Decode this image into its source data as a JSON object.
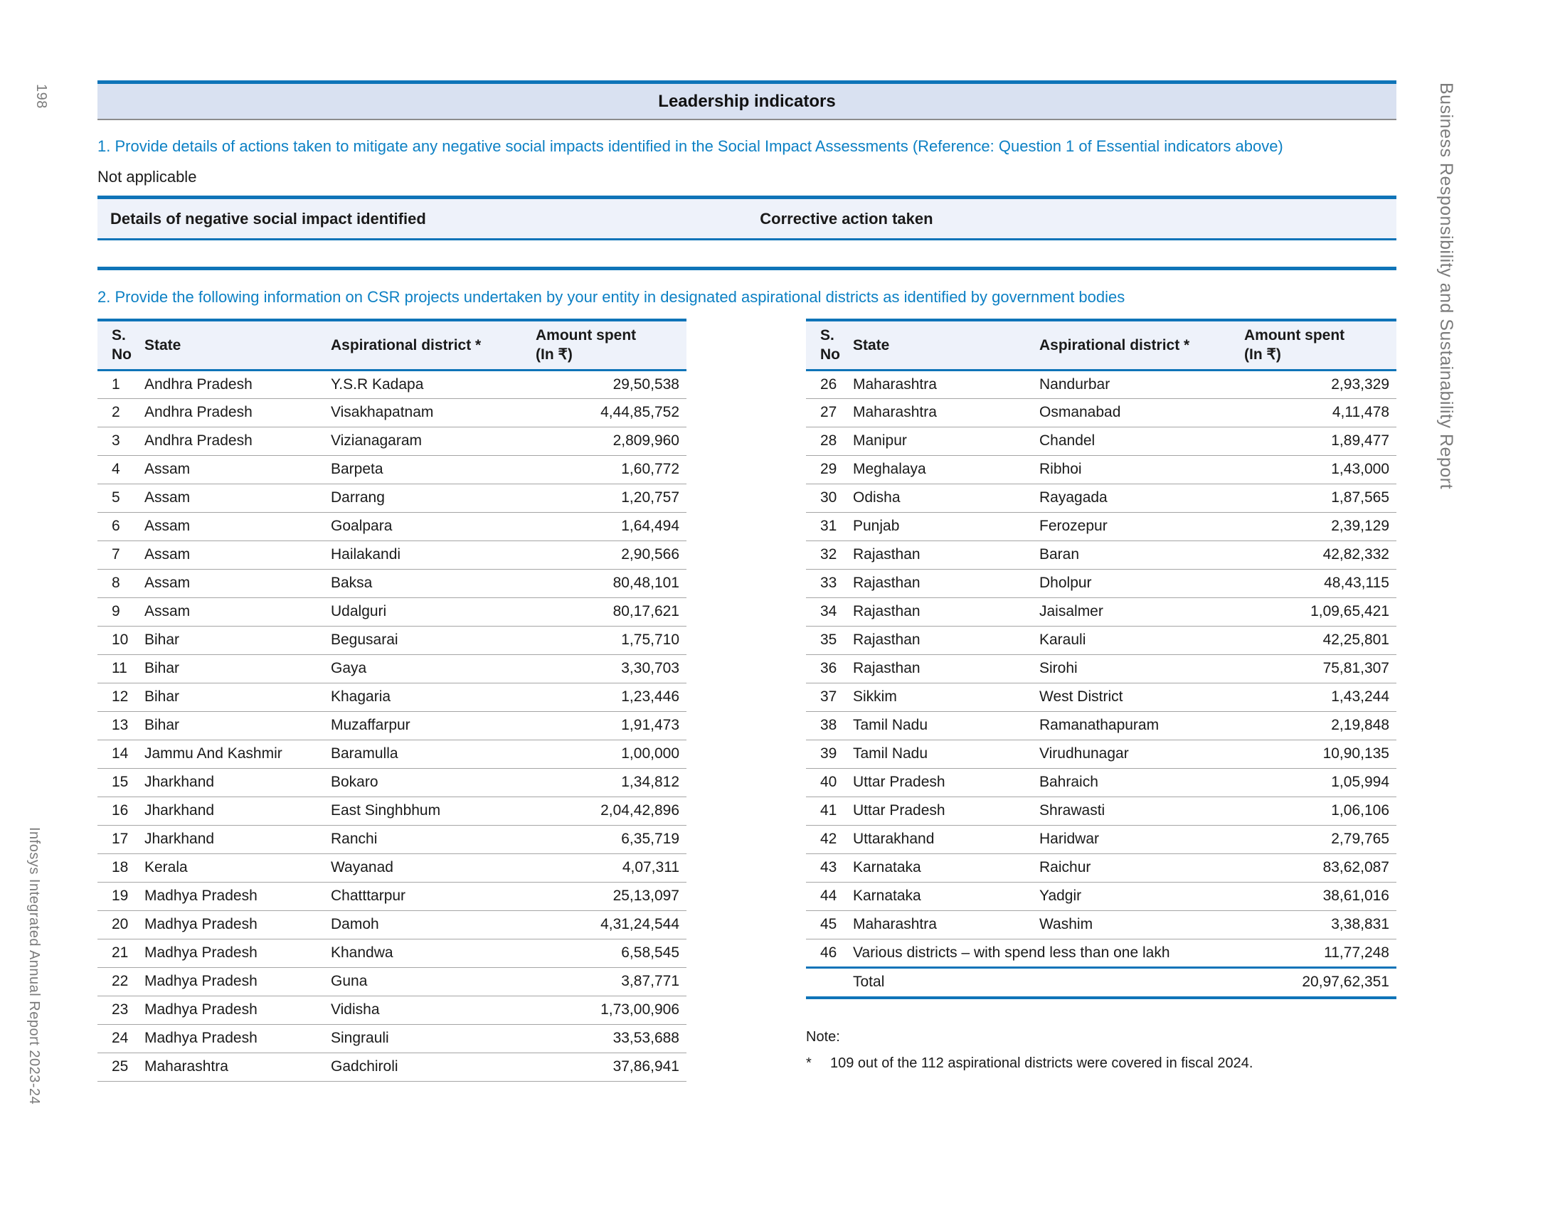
{
  "page": {
    "number": "198",
    "left_footer": "Infosys Integrated Annual Report 2023-24",
    "right_sidebar": "Business Responsibility and Sustainability Report"
  },
  "header": {
    "title": "Leadership indicators"
  },
  "q1": {
    "text": "1. Provide details of actions taken to mitigate any negative social impacts identified in the Social Impact Assessments (Reference: Question 1 of Essential indicators above)",
    "answer": "Not applicable"
  },
  "impact_table": {
    "col1": "Details of negative social impact identified",
    "col2": "Corrective action taken"
  },
  "q2": {
    "text": "2. Provide the following information on CSR projects undertaken by your entity in designated aspirational districts as identified by government bodies"
  },
  "csr_table": {
    "headers": {
      "sno": "S.\nNo",
      "state": "State",
      "district": "Aspirational district *",
      "amount_line1": "Amount spent",
      "amount_line2": "(In ₹)"
    },
    "left_rows": [
      {
        "sno": "1",
        "state": "Andhra Pradesh",
        "district": "Y.S.R Kadapa",
        "amount": "29,50,538"
      },
      {
        "sno": "2",
        "state": "Andhra Pradesh",
        "district": "Visakhapatnam",
        "amount": "4,44,85,752"
      },
      {
        "sno": "3",
        "state": "Andhra Pradesh",
        "district": "Vizianagaram",
        "amount": "2,809,960"
      },
      {
        "sno": "4",
        "state": "Assam",
        "district": "Barpeta",
        "amount": "1,60,772"
      },
      {
        "sno": "5",
        "state": "Assam",
        "district": "Darrang",
        "amount": "1,20,757"
      },
      {
        "sno": "6",
        "state": "Assam",
        "district": "Goalpara",
        "amount": "1,64,494"
      },
      {
        "sno": "7",
        "state": "Assam",
        "district": "Hailakandi",
        "amount": "2,90,566"
      },
      {
        "sno": "8",
        "state": "Assam",
        "district": "Baksa",
        "amount": "80,48,101"
      },
      {
        "sno": "9",
        "state": "Assam",
        "district": "Udalguri",
        "amount": "80,17,621"
      },
      {
        "sno": "10",
        "state": "Bihar",
        "district": "Begusarai",
        "amount": "1,75,710"
      },
      {
        "sno": "11",
        "state": "Bihar",
        "district": "Gaya",
        "amount": "3,30,703"
      },
      {
        "sno": "12",
        "state": "Bihar",
        "district": "Khagaria",
        "amount": "1,23,446"
      },
      {
        "sno": "13",
        "state": "Bihar",
        "district": "Muzaffarpur",
        "amount": "1,91,473"
      },
      {
        "sno": "14",
        "state": "Jammu And Kashmir",
        "district": "Baramulla",
        "amount": "1,00,000"
      },
      {
        "sno": "15",
        "state": "Jharkhand",
        "district": "Bokaro",
        "amount": "1,34,812"
      },
      {
        "sno": "16",
        "state": "Jharkhand",
        "district": "East Singhbhum",
        "amount": "2,04,42,896"
      },
      {
        "sno": "17",
        "state": "Jharkhand",
        "district": "Ranchi",
        "amount": "6,35,719"
      },
      {
        "sno": "18",
        "state": "Kerala",
        "district": "Wayanad",
        "amount": "4,07,311"
      },
      {
        "sno": "19",
        "state": "Madhya Pradesh",
        "district": "Chatttarpur",
        "amount": "25,13,097"
      },
      {
        "sno": "20",
        "state": "Madhya Pradesh",
        "district": "Damoh",
        "amount": "4,31,24,544"
      },
      {
        "sno": "21",
        "state": "Madhya Pradesh",
        "district": "Khandwa",
        "amount": "6,58,545"
      },
      {
        "sno": "22",
        "state": "Madhya Pradesh",
        "district": "Guna",
        "amount": "3,87,771"
      },
      {
        "sno": "23",
        "state": "Madhya Pradesh",
        "district": "Vidisha",
        "amount": "1,73,00,906"
      },
      {
        "sno": "24",
        "state": "Madhya Pradesh",
        "district": "Singrauli",
        "amount": "33,53,688"
      },
      {
        "sno": "25",
        "state": "Maharashtra",
        "district": "Gadchiroli",
        "amount": "37,86,941"
      }
    ],
    "right_rows": [
      {
        "sno": "26",
        "state": "Maharashtra",
        "district": "Nandurbar",
        "amount": "2,93,329"
      },
      {
        "sno": "27",
        "state": "Maharashtra",
        "district": "Osmanabad",
        "amount": "4,11,478"
      },
      {
        "sno": "28",
        "state": "Manipur",
        "district": "Chandel",
        "amount": "1,89,477"
      },
      {
        "sno": "29",
        "state": "Meghalaya",
        "district": "Ribhoi",
        "amount": "1,43,000"
      },
      {
        "sno": "30",
        "state": "Odisha",
        "district": "Rayagada",
        "amount": "1,87,565"
      },
      {
        "sno": "31",
        "state": "Punjab",
        "district": "Ferozepur",
        "amount": "2,39,129"
      },
      {
        "sno": "32",
        "state": "Rajasthan",
        "district": "Baran",
        "amount": "42,82,332"
      },
      {
        "sno": "33",
        "state": "Rajasthan",
        "district": "Dholpur",
        "amount": "48,43,115"
      },
      {
        "sno": "34",
        "state": "Rajasthan",
        "district": "Jaisalmer",
        "amount": "1,09,65,421"
      },
      {
        "sno": "35",
        "state": "Rajasthan",
        "district": "Karauli",
        "amount": "42,25,801"
      },
      {
        "sno": "36",
        "state": "Rajasthan",
        "district": "Sirohi",
        "amount": "75,81,307"
      },
      {
        "sno": "37",
        "state": "Sikkim",
        "district": "West District",
        "amount": "1,43,244"
      },
      {
        "sno": "38",
        "state": "Tamil Nadu",
        "district": "Ramanathapuram",
        "amount": "2,19,848"
      },
      {
        "sno": "39",
        "state": "Tamil Nadu",
        "district": "Virudhunagar",
        "amount": "10,90,135"
      },
      {
        "sno": "40",
        "state": "Uttar Pradesh",
        "district": "Bahraich",
        "amount": "1,05,994"
      },
      {
        "sno": "41",
        "state": "Uttar Pradesh",
        "district": "Shrawasti",
        "amount": "1,06,106"
      },
      {
        "sno": "42",
        "state": "Uttarakhand",
        "district": "Haridwar",
        "amount": "2,79,765"
      },
      {
        "sno": "43",
        "state": "Karnataka",
        "district": "Raichur",
        "amount": "83,62,087"
      },
      {
        "sno": "44",
        "state": "Karnataka",
        "district": "Yadgir",
        "amount": "38,61,016"
      },
      {
        "sno": "45",
        "state": "Maharashtra",
        "district": "Washim",
        "amount": "3,38,831"
      },
      {
        "sno": "46",
        "state": "Various districts – with spend less than one lakh",
        "district": null,
        "amount": "11,77,248"
      }
    ],
    "total_label": "Total",
    "total_value": "20,97,62,351"
  },
  "note": {
    "label": "Note:",
    "marker": "*",
    "text": "109 out of the 112 aspirational districts were covered in fiscal 2024."
  },
  "colors": {
    "accent_blue": "#0f74b8",
    "question_blue": "#0c80c4",
    "band_bg": "#d9e1f1",
    "table_header_bg": "#eef2fa",
    "row_divider": "#a5a5a5",
    "muted_gray": "#7b7b7b",
    "text": "#1a1a1a"
  }
}
